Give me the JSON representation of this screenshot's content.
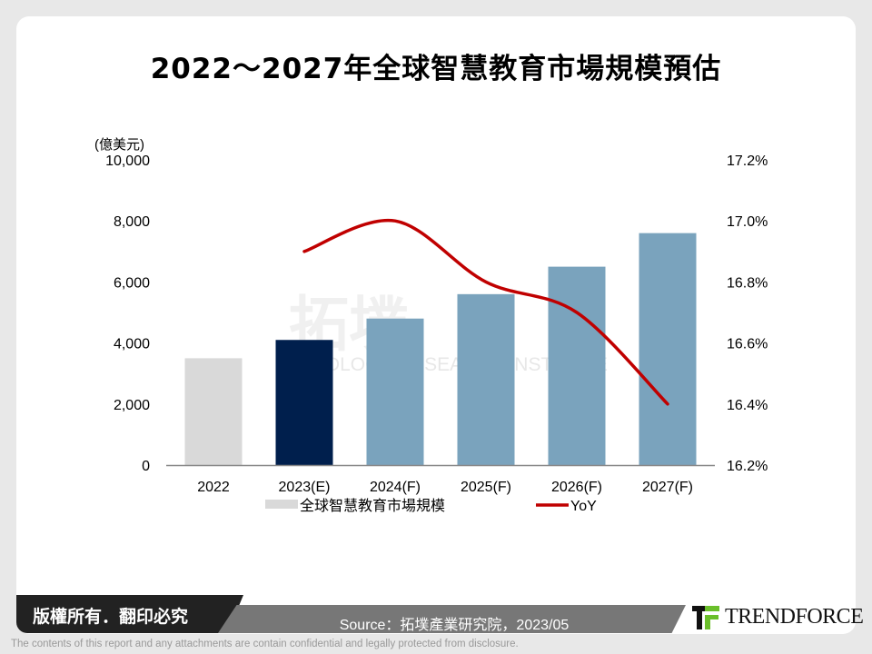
{
  "title": "2022～2027年全球智慧教育市場規模預估",
  "chart_data": {
    "type": "bar+line",
    "title": "2022～2027年全球智慧教育市場規模預估",
    "categories": [
      "2022",
      "2023(E)",
      "2024(F)",
      "2025(F)",
      "2026(F)",
      "2027(F)"
    ],
    "y_unit_label": "(億美元)",
    "ylim": [
      0,
      10000
    ],
    "yticks": [
      "0",
      "2,000",
      "4,000",
      "6,000",
      "8,000",
      "10,000"
    ],
    "y2lim": [
      16.2,
      17.2
    ],
    "y2ticks": [
      "16.2%",
      "16.4%",
      "16.6%",
      "16.8%",
      "17.0%",
      "17.2%"
    ],
    "grid": false,
    "legend_position": "bottom",
    "series": [
      {
        "name": "全球智慧教育市場規模",
        "kind": "bar",
        "axis": "left",
        "values": [
          3500,
          4100,
          4800,
          5600,
          6500,
          7600
        ],
        "colors": [
          "#d9d9d9",
          "#001f4d",
          "#7aa3bd",
          "#7aa3bd",
          "#7aa3bd",
          "#7aa3bd"
        ]
      },
      {
        "name": "YoY",
        "kind": "line",
        "axis": "right",
        "values": [
          null,
          16.9,
          17.0,
          16.8,
          16.7,
          16.4
        ],
        "color": "#c00000"
      }
    ]
  },
  "watermark": {
    "cn": "拓墣",
    "en": "TOPOLOGY RESEARCH INSTITUTE"
  },
  "footer": {
    "copyright": "版權所有．翻印必究",
    "source": "Source：拓墣產業研究院，2023/05",
    "logo": "TRENDFORCE",
    "disclaimer": "The contents of this report and any attachments are contain confidential and legally protected from disclosure."
  }
}
